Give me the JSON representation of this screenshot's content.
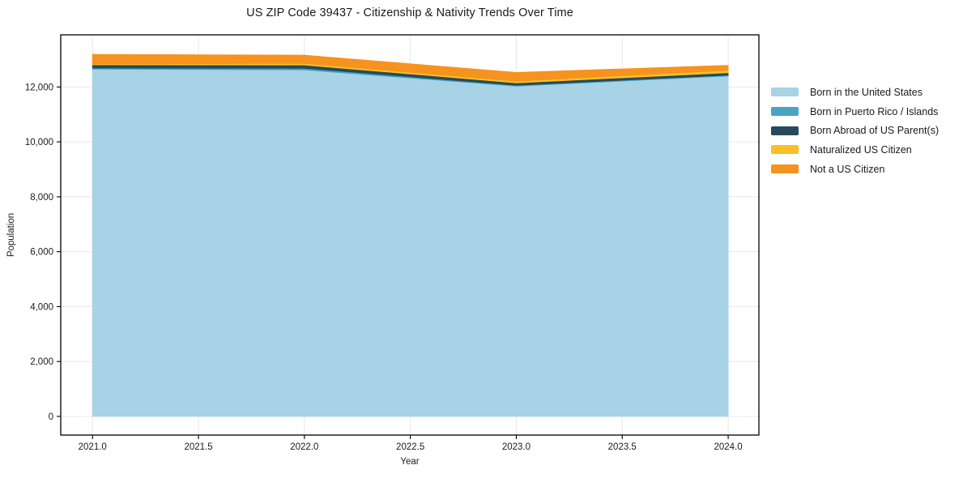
{
  "chart_data": {
    "type": "area",
    "stacked": true,
    "title": "US ZIP Code 39437 - Citizenship & Nativity Trends Over Time",
    "xlabel": "Year",
    "ylabel": "Population",
    "x": [
      2021,
      2022,
      2023,
      2024
    ],
    "series": [
      {
        "name": "Born in the United States",
        "color": "#a8d2e6",
        "values": [
          12650,
          12620,
          12030,
          12400
        ]
      },
      {
        "name": "Born in Puerto Rico / Islands",
        "color": "#46a5c4",
        "values": [
          40,
          60,
          30,
          30
        ]
      },
      {
        "name": "Born Abroad of US Parent(s)",
        "color": "#27495c",
        "values": [
          120,
          120,
          90,
          90
        ]
      },
      {
        "name": "Naturalized US Citizen",
        "color": "#fcbf24",
        "values": [
          30,
          60,
          60,
          90
        ]
      },
      {
        "name": "Not a US Citizen",
        "color": "#f6921e",
        "values": [
          350,
          300,
          320,
          180
        ]
      }
    ],
    "xticks": [
      2021.0,
      2021.5,
      2022.0,
      2022.5,
      2023.0,
      2023.5,
      2024.0
    ],
    "xtick_labels": [
      "2021.0",
      "2021.5",
      "2022.0",
      "2022.5",
      "2023.0",
      "2023.5",
      "2024.0"
    ],
    "yticks": [
      0,
      2000,
      4000,
      6000,
      8000,
      10000,
      12000
    ],
    "ytick_labels": [
      "0",
      "2,000",
      "4,000",
      "6,000",
      "8,000",
      "10,000",
      "12,000"
    ],
    "xlim": [
      2020.85,
      2024.145
    ],
    "ylim": [
      -680,
      13900
    ],
    "grid": true,
    "grid_color": "#e8e8e8",
    "spine_color": "#000000",
    "text_color": "#1a1a1a",
    "legend_position": "right"
  }
}
